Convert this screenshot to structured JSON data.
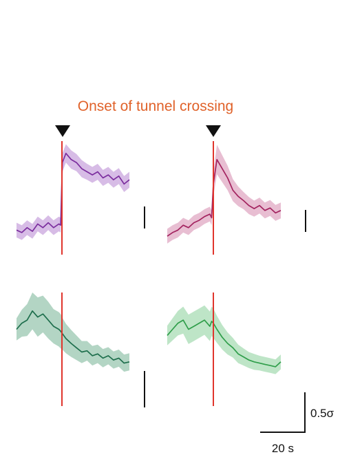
{
  "annotation": {
    "onset_label": "Onset of tunnel crossing",
    "onset_color": "#e0622a",
    "marker_color": "#111111",
    "onset_line_color": "#e0342c"
  },
  "scale_bars": {
    "time_label": "20 s",
    "amplitude_label": "0.5σ",
    "time_value_s": 20,
    "amplitude_value_sigma": 0.5
  },
  "chart_data": [
    {
      "type": "line",
      "panel": "top-left",
      "color": "#7b2d9e",
      "band_color": "#c9a6de",
      "x_units": "s relative to onset",
      "ylim": [
        -0.3,
        1.55
      ],
      "x": [
        -25,
        -22,
        -19,
        -16,
        -13,
        -10,
        -7,
        -4,
        -1,
        0,
        1,
        3,
        6,
        9,
        12,
        15,
        18,
        21,
        24,
        27,
        30,
        33,
        36,
        39
      ],
      "values": [
        0.1,
        0.06,
        0.14,
        0.08,
        0.2,
        0.14,
        0.22,
        0.14,
        0.2,
        0.18,
        1.2,
        1.35,
        1.25,
        1.2,
        1.1,
        1.05,
        1.0,
        1.05,
        0.95,
        1.0,
        0.92,
        0.98,
        0.85,
        0.92
      ],
      "band": [
        0.12,
        0.12,
        0.12,
        0.12,
        0.12,
        0.12,
        0.12,
        0.12,
        0.12,
        0.12,
        0.15,
        0.15,
        0.15,
        0.14,
        0.14,
        0.13,
        0.13,
        0.13,
        0.13,
        0.13,
        0.13,
        0.13,
        0.13,
        0.13
      ]
    },
    {
      "type": "line",
      "panel": "top-right",
      "color": "#a3235f",
      "band_color": "#e0a8c3",
      "x_units": "s relative to onset",
      "ylim": [
        -0.3,
        1.55
      ],
      "x": [
        -25,
        -22,
        -19,
        -16,
        -13,
        -10,
        -7,
        -4,
        -1,
        0,
        1,
        3,
        6,
        9,
        12,
        15,
        18,
        21,
        24,
        27,
        30,
        33,
        36,
        39
      ],
      "values": [
        0.0,
        0.06,
        0.1,
        0.18,
        0.14,
        0.22,
        0.26,
        0.32,
        0.36,
        0.3,
        0.85,
        1.25,
        1.1,
        0.95,
        0.75,
        0.65,
        0.58,
        0.5,
        0.45,
        0.5,
        0.42,
        0.46,
        0.38,
        0.42
      ],
      "band": [
        0.12,
        0.12,
        0.12,
        0.12,
        0.12,
        0.12,
        0.12,
        0.12,
        0.12,
        0.12,
        0.2,
        0.24,
        0.22,
        0.2,
        0.18,
        0.16,
        0.14,
        0.14,
        0.13,
        0.13,
        0.13,
        0.13,
        0.13,
        0.13
      ]
    },
    {
      "type": "line",
      "panel": "bottom-left",
      "color": "#1d6e4c",
      "band_color": "#9ac7b0",
      "x_units": "s relative to onset",
      "ylim": [
        -0.3,
        1.55
      ],
      "x": [
        -25,
        -22,
        -19,
        -16,
        -13,
        -10,
        -7,
        -4,
        -1,
        0,
        1,
        3,
        6,
        9,
        12,
        15,
        18,
        21,
        24,
        27,
        30,
        33,
        36,
        39
      ],
      "values": [
        0.95,
        1.05,
        1.1,
        1.25,
        1.15,
        1.2,
        1.1,
        1.0,
        0.95,
        0.92,
        0.88,
        0.8,
        0.72,
        0.65,
        0.58,
        0.6,
        0.52,
        0.55,
        0.48,
        0.52,
        0.45,
        0.48,
        0.4,
        0.42
      ],
      "band": [
        0.18,
        0.22,
        0.26,
        0.3,
        0.32,
        0.3,
        0.3,
        0.28,
        0.28,
        0.28,
        0.26,
        0.24,
        0.22,
        0.2,
        0.18,
        0.16,
        0.16,
        0.15,
        0.15,
        0.14,
        0.14,
        0.14,
        0.14,
        0.14
      ]
    },
    {
      "type": "line",
      "panel": "bottom-right",
      "color": "#2f9e4a",
      "band_color": "#a8dcb4",
      "x_units": "s relative to onset",
      "ylim": [
        -0.3,
        1.55
      ],
      "x": [
        -25,
        -22,
        -19,
        -16,
        -13,
        -10,
        -7,
        -4,
        -1,
        0,
        1,
        3,
        6,
        9,
        12,
        15,
        18,
        21,
        24,
        27,
        30,
        33,
        36,
        39
      ],
      "values": [
        0.85,
        0.95,
        1.05,
        1.1,
        0.95,
        1.0,
        1.05,
        1.1,
        1.0,
        1.08,
        1.05,
        0.95,
        0.82,
        0.72,
        0.65,
        0.55,
        0.5,
        0.45,
        0.42,
        0.4,
        0.38,
        0.36,
        0.34,
        0.42
      ],
      "band": [
        0.16,
        0.18,
        0.2,
        0.22,
        0.24,
        0.24,
        0.24,
        0.24,
        0.24,
        0.24,
        0.24,
        0.22,
        0.2,
        0.18,
        0.16,
        0.15,
        0.14,
        0.13,
        0.13,
        0.12,
        0.12,
        0.12,
        0.12,
        0.12
      ]
    }
  ]
}
